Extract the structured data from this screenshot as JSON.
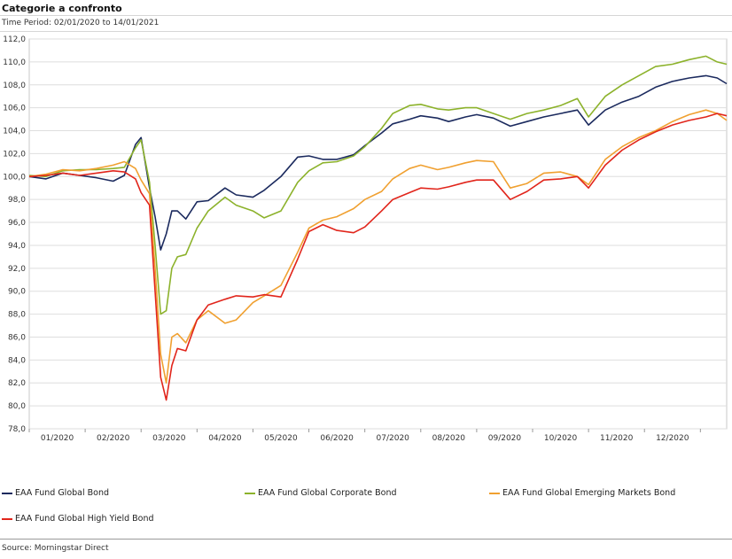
{
  "header": {
    "title": "Categorie a confronto",
    "time_period": "Time Period: 02/01/2020 to 14/01/2021"
  },
  "footer": {
    "source": "Source: Morningstar Direct"
  },
  "chart_data": {
    "type": "line",
    "title": "Categorie a confronto",
    "subtitle": "Time Period: 02/01/2020 to 14/01/2021",
    "xlabel": "",
    "ylabel": "",
    "ylim": [
      78,
      112
    ],
    "y_ticks": [
      "78,0",
      "80,0",
      "82,0",
      "84,0",
      "86,0",
      "88,0",
      "90,0",
      "92,0",
      "94,0",
      "96,0",
      "98,0",
      "100,0",
      "102,0",
      "104,0",
      "106,0",
      "108,0",
      "110,0",
      "112,0"
    ],
    "x_range": [
      0,
      12.47
    ],
    "x_ticks": [
      {
        "pos": 0.5,
        "label": "01/2020"
      },
      {
        "pos": 1.5,
        "label": "02/2020"
      },
      {
        "pos": 2.5,
        "label": "03/2020"
      },
      {
        "pos": 3.5,
        "label": "04/2020"
      },
      {
        "pos": 4.5,
        "label": "05/2020"
      },
      {
        "pos": 5.5,
        "label": "06/2020"
      },
      {
        "pos": 6.5,
        "label": "07/2020"
      },
      {
        "pos": 7.5,
        "label": "08/2020"
      },
      {
        "pos": 8.5,
        "label": "09/2020"
      },
      {
        "pos": 9.5,
        "label": "10/2020"
      },
      {
        "pos": 10.5,
        "label": "11/2020"
      },
      {
        "pos": 11.5,
        "label": "12/2020"
      }
    ],
    "grid": true,
    "legend_position": "bottom",
    "x": [
      0,
      0.3,
      0.6,
      0.9,
      1.2,
      1.5,
      1.7,
      1.9,
      2.0,
      2.15,
      2.25,
      2.35,
      2.45,
      2.55,
      2.65,
      2.8,
      3.0,
      3.2,
      3.5,
      3.7,
      4.0,
      4.2,
      4.5,
      4.8,
      5.0,
      5.25,
      5.5,
      5.8,
      6.0,
      6.3,
      6.5,
      6.8,
      7.0,
      7.3,
      7.5,
      7.8,
      8.0,
      8.3,
      8.6,
      8.9,
      9.2,
      9.5,
      9.8,
      10.0,
      10.3,
      10.6,
      10.9,
      11.2,
      11.5,
      11.8,
      12.1,
      12.3,
      12.47
    ],
    "series": [
      {
        "name": "EAA Fund Global Bond",
        "color": "#1b2a5e",
        "values": [
          100.0,
          99.8,
          100.3,
          100.1,
          99.9,
          99.6,
          100.1,
          102.8,
          103.4,
          99.0,
          96.5,
          93.6,
          95.0,
          97.0,
          97.0,
          96.3,
          97.8,
          97.9,
          99.0,
          98.4,
          98.2,
          98.8,
          100.0,
          101.7,
          101.8,
          101.5,
          101.5,
          101.9,
          102.7,
          103.8,
          104.6,
          105.0,
          105.3,
          105.1,
          104.8,
          105.2,
          105.4,
          105.1,
          104.4,
          104.8,
          105.2,
          105.5,
          105.8,
          104.5,
          105.8,
          106.5,
          107.0,
          107.8,
          108.3,
          108.6,
          108.8,
          108.6,
          108.1
        ]
      },
      {
        "name": "EAA Fund Global Corporate Bond",
        "color": "#8cb22b",
        "values": [
          100.1,
          100.0,
          100.5,
          100.6,
          100.6,
          100.7,
          100.8,
          102.5,
          103.2,
          99.5,
          94.0,
          88.0,
          88.3,
          92.0,
          93.0,
          93.2,
          95.5,
          97.0,
          98.2,
          97.5,
          97.0,
          96.4,
          97.0,
          99.5,
          100.5,
          101.2,
          101.3,
          101.8,
          102.6,
          104.2,
          105.5,
          106.2,
          106.3,
          105.9,
          105.8,
          106.0,
          106.0,
          105.5,
          105.0,
          105.5,
          105.8,
          106.2,
          106.8,
          105.2,
          107.0,
          108.0,
          108.8,
          109.6,
          109.8,
          110.2,
          110.5,
          110.0,
          109.8
        ]
      },
      {
        "name": "EAA Fund Global Emerging Markets Bond",
        "color": "#f0a030",
        "values": [
          100.0,
          100.2,
          100.6,
          100.5,
          100.7,
          101.0,
          101.3,
          100.7,
          99.7,
          98.5,
          92.0,
          84.5,
          82.0,
          86.0,
          86.3,
          85.5,
          87.5,
          88.3,
          87.2,
          87.5,
          89.0,
          89.6,
          90.5,
          93.4,
          95.5,
          96.2,
          96.5,
          97.2,
          98.0,
          98.7,
          99.8,
          100.7,
          101.0,
          100.6,
          100.8,
          101.2,
          101.4,
          101.3,
          99.0,
          99.4,
          100.3,
          100.4,
          100.0,
          99.3,
          101.5,
          102.6,
          103.4,
          104.0,
          104.8,
          105.4,
          105.8,
          105.5,
          104.9
        ]
      },
      {
        "name": "EAA Fund Global High Yield Bond",
        "color": "#e1251b",
        "values": [
          100.0,
          100.1,
          100.3,
          100.1,
          100.3,
          100.5,
          100.4,
          99.8,
          98.6,
          97.5,
          90.0,
          82.5,
          80.5,
          83.5,
          85.0,
          84.8,
          87.5,
          88.8,
          89.3,
          89.6,
          89.5,
          89.7,
          89.5,
          92.8,
          95.2,
          95.8,
          95.3,
          95.1,
          95.6,
          97.0,
          98.0,
          98.6,
          99.0,
          98.9,
          99.1,
          99.5,
          99.7,
          99.7,
          98.0,
          98.7,
          99.7,
          99.8,
          100.0,
          99.0,
          101.0,
          102.3,
          103.2,
          103.9,
          104.5,
          104.9,
          105.2,
          105.5,
          105.3
        ]
      }
    ]
  }
}
